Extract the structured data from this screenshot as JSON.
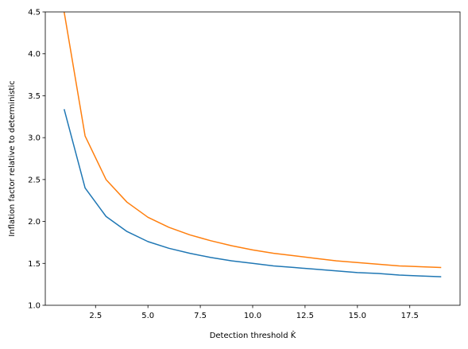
{
  "chart_data": {
    "type": "line",
    "title": "",
    "xlabel": "Detection threshold K̂",
    "ylabel": "Inflation factor relative to deterministic",
    "xlim": [
      0.1,
      19.9
    ],
    "ylim": [
      1.0,
      4.5
    ],
    "x_ticks": [
      2.5,
      5.0,
      7.5,
      10.0,
      12.5,
      15.0,
      17.5
    ],
    "x_tick_labels": [
      "2.5",
      "5.0",
      "7.5",
      "10.0",
      "12.5",
      "15.0",
      "17.5"
    ],
    "y_ticks": [
      1.0,
      1.5,
      2.0,
      2.5,
      3.0,
      3.5,
      4.0,
      4.5
    ],
    "y_tick_labels": [
      "1.0",
      "1.5",
      "2.0",
      "2.5",
      "3.0",
      "3.5",
      "4.0",
      "4.5"
    ],
    "grid": false,
    "legend": "none",
    "x": [
      1,
      2,
      3,
      4,
      5,
      6,
      7,
      8,
      9,
      10,
      11,
      12,
      13,
      14,
      15,
      16,
      17,
      18,
      19
    ],
    "series": [
      {
        "color": "#1f77b4",
        "values": [
          3.34,
          2.4,
          2.06,
          1.88,
          1.76,
          1.68,
          1.62,
          1.57,
          1.53,
          1.5,
          1.47,
          1.45,
          1.43,
          1.41,
          1.39,
          1.38,
          1.36,
          1.35,
          1.34
        ]
      },
      {
        "color": "#ff7f0e",
        "values": [
          4.5,
          3.02,
          2.5,
          2.23,
          2.05,
          1.93,
          1.84,
          1.77,
          1.71,
          1.66,
          1.62,
          1.59,
          1.56,
          1.53,
          1.51,
          1.49,
          1.47,
          1.46,
          1.45
        ]
      }
    ]
  }
}
